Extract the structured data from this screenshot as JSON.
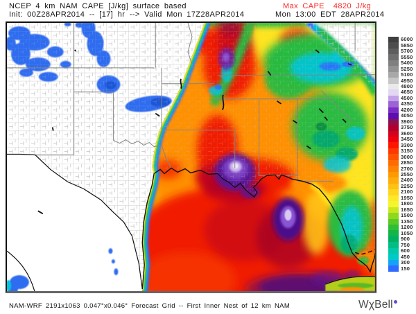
{
  "header": {
    "title": "NCEP 4 km NAM CAPE [J/kg] surface based",
    "init_line": "Init: 00Z28APR2014 -- [17] hr --> Valid Mon 17Z28APR2014",
    "max_cape": "Max CAPE  4820 J/kg",
    "valid_time": "Mon 13:00 EDT 28APR2014"
  },
  "footer": {
    "grid_info": "NAM-WRF 2191x1063 0.047°x0.046° Forecast Grid -- First Inner Nest of 12 km NAM",
    "logo_text": "WχBell"
  },
  "colorbar": {
    "units": "J/kg",
    "entries": [
      {
        "value": "6000",
        "color": "#3f3f3f"
      },
      {
        "value": "5850",
        "color": "#4d4d4d"
      },
      {
        "value": "5700",
        "color": "#5d5d5d"
      },
      {
        "value": "5550",
        "color": "#6e6e6e"
      },
      {
        "value": "5400",
        "color": "#808080"
      },
      {
        "value": "5250",
        "color": "#939393"
      },
      {
        "value": "5100",
        "color": "#a8a8a8"
      },
      {
        "value": "4950",
        "color": "#c6c6c6"
      },
      {
        "value": "4800",
        "color": "#e9e9e9"
      },
      {
        "value": "4650",
        "color": "#e3d7f3"
      },
      {
        "value": "4500",
        "color": "#c3a1e8"
      },
      {
        "value": "4350",
        "color": "#9c63d6"
      },
      {
        "value": "4200",
        "color": "#7a2cc4"
      },
      {
        "value": "4050",
        "color": "#5c0fae"
      },
      {
        "value": "3900",
        "color": "#8c1050"
      },
      {
        "value": "3750",
        "color": "#b1002e"
      },
      {
        "value": "3600",
        "color": "#d4001c"
      },
      {
        "value": "3450",
        "color": "#ef000e"
      },
      {
        "value": "3300",
        "color": "#ff1400"
      },
      {
        "value": "3150",
        "color": "#ff3800"
      },
      {
        "value": "3000",
        "color": "#ff5200"
      },
      {
        "value": "2850",
        "color": "#ff6b00"
      },
      {
        "value": "2700",
        "color": "#ff8300"
      },
      {
        "value": "2550",
        "color": "#ff9900"
      },
      {
        "value": "2400",
        "color": "#ffad08"
      },
      {
        "value": "2250",
        "color": "#ffc113"
      },
      {
        "value": "2100",
        "color": "#ffd51d"
      },
      {
        "value": "1950",
        "color": "#ffe926"
      },
      {
        "value": "1800",
        "color": "#f5f52e"
      },
      {
        "value": "1650",
        "color": "#c8e81e"
      },
      {
        "value": "1500",
        "color": "#8fd81a"
      },
      {
        "value": "1350",
        "color": "#58ca25"
      },
      {
        "value": "1200",
        "color": "#2fbe35"
      },
      {
        "value": "1050",
        "color": "#12b54a"
      },
      {
        "value": "900",
        "color": "#00b061"
      },
      {
        "value": "750",
        "color": "#00bd85"
      },
      {
        "value": "600",
        "color": "#00c9a7"
      },
      {
        "value": "450",
        "color": "#00c9c9"
      },
      {
        "value": "300",
        "color": "#14a3f7"
      },
      {
        "value": "150",
        "color": "#2e6bff"
      }
    ]
  }
}
